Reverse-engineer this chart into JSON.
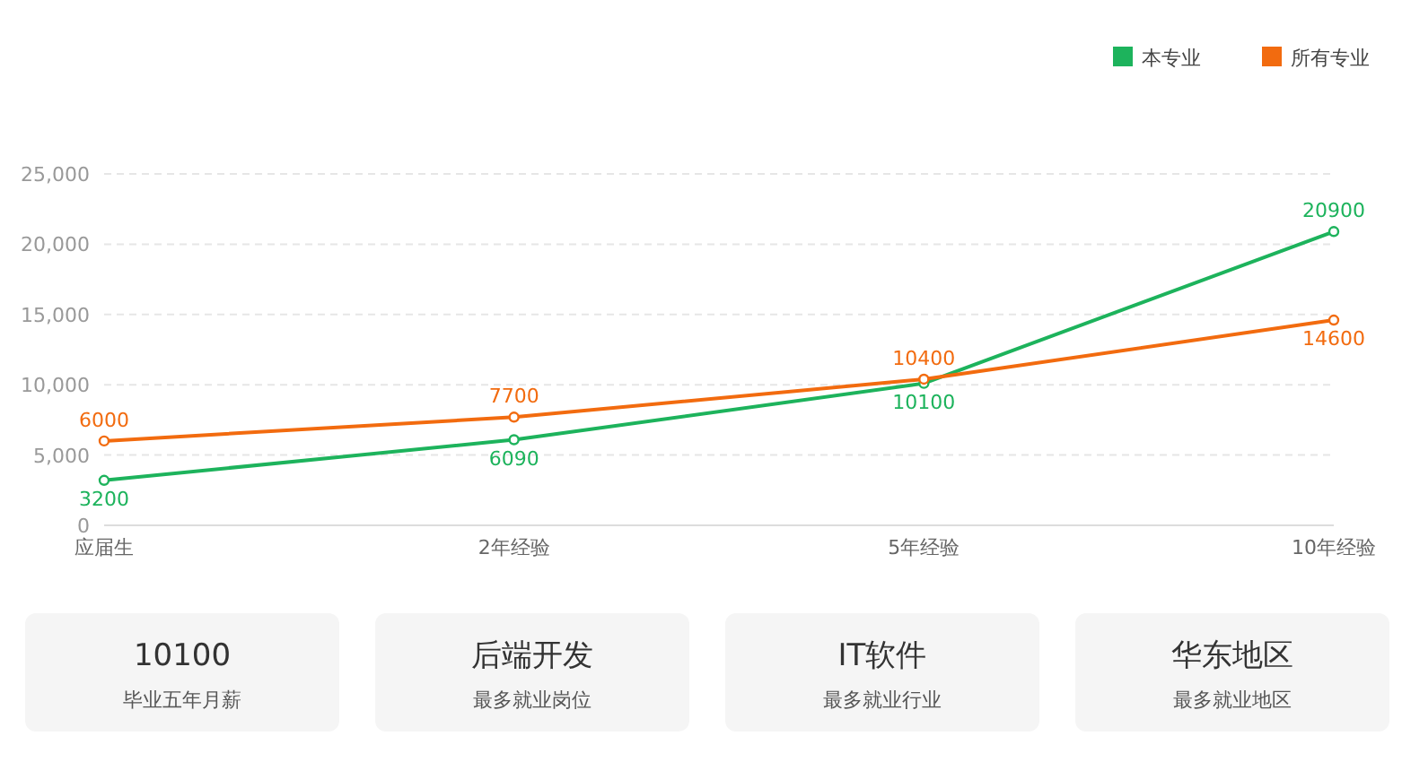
{
  "chart_data": [
    {
      "type": "line",
      "categories": [
        "应届生",
        "2年经验",
        "5年经验",
        "10年经验"
      ],
      "series": [
        {
          "name": "本专业",
          "color": "#1db35c",
          "values": [
            3200,
            6090,
            10100,
            20900
          ]
        },
        {
          "name": "所有专业",
          "color": "#f26b0f",
          "values": [
            6000,
            7700,
            10400,
            14600
          ]
        }
      ],
      "ylim": [
        0,
        25000
      ],
      "yticks": [
        0,
        {
          "value": 5000,
          "label": "5,000"
        },
        {
          "value": 10000,
          "label": "10,000"
        },
        {
          "value": 15000,
          "label": "15,000"
        },
        {
          "value": 20000,
          "label": "20,000"
        },
        {
          "value": 25000,
          "label": "25,000"
        }
      ],
      "grid": "y",
      "legend": "top right",
      "marker": "circle",
      "line_style": "solid",
      "data_labels": true
    },
    {
      "type": "other",
      "annotations": [
        "10100",
        "毕业五年月薪",
        "后端开发",
        "最多就业岗位",
        "IT软件",
        "最多就业行业",
        "华东地区",
        "最多就业地区"
      ]
    }
  ]
}
